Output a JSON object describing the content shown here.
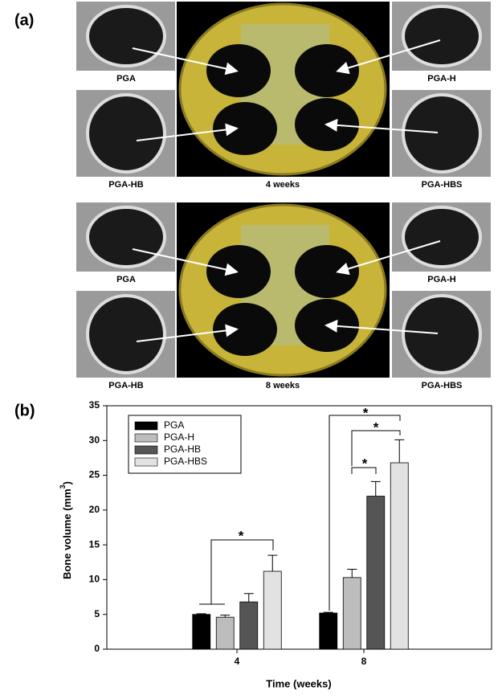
{
  "panel_a": {
    "label": "(a)",
    "blocks": [
      {
        "time": "4 weeks",
        "labels": [
          "PGA",
          "PGA-H",
          "PGA-HB",
          "PGA-HBS"
        ]
      },
      {
        "time": "8 weeks",
        "labels": [
          "PGA",
          "PGA-H",
          "PGA-HB",
          "PGA-HBS"
        ]
      }
    ]
  },
  "panel_b_label": "(b)",
  "chart_data": {
    "type": "bar",
    "xlabel": "Time (weeks)",
    "ylabel": {
      "text": "Bone volume (mm",
      "sup": "3",
      "end": ")"
    },
    "categories": [
      "4",
      "8"
    ],
    "series": [
      {
        "name": "PGA",
        "color": "#000000",
        "values": [
          5.0,
          5.2
        ],
        "errors": [
          0.1,
          0.1
        ]
      },
      {
        "name": "PGA-H",
        "color": "#bdbdbd",
        "values": [
          4.6,
          10.3
        ],
        "errors": [
          0.3,
          1.2
        ]
      },
      {
        "name": "PGA-HB",
        "color": "#555555",
        "values": [
          6.8,
          22.0
        ],
        "errors": [
          1.2,
          2.1
        ]
      },
      {
        "name": "PGA-HBS",
        "color": "#e2e2e2",
        "values": [
          11.2,
          26.8
        ],
        "errors": [
          2.3,
          3.3
        ]
      }
    ],
    "ylim": [
      0,
      35
    ],
    "yticks": [
      0,
      5,
      10,
      15,
      20,
      25,
      30,
      35
    ],
    "grid": false,
    "legend": "upper left",
    "annotations": [
      {
        "label": "*"
      },
      {
        "label": "*"
      },
      {
        "label": "*"
      },
      {
        "label": "*"
      }
    ]
  }
}
